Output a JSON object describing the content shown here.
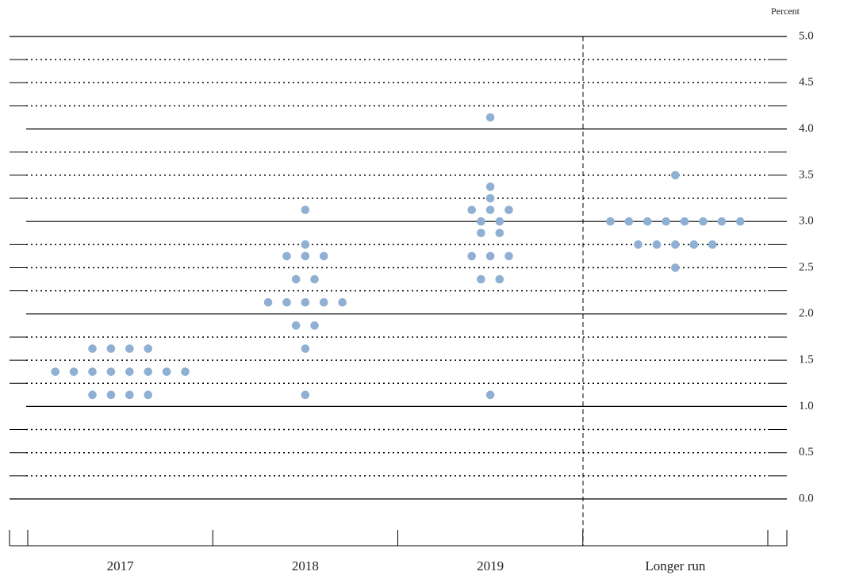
{
  "chart_data": {
    "type": "dot",
    "y_unit_label": "Percent",
    "categories": [
      "2017",
      "2018",
      "2019",
      "Longer run"
    ],
    "values": [
      [
        1.625,
        1.625,
        1.625,
        1.625,
        1.375,
        1.375,
        1.375,
        1.375,
        1.375,
        1.375,
        1.375,
        1.375,
        1.125,
        1.125,
        1.125,
        1.125
      ],
      [
        3.125,
        2.75,
        2.625,
        2.625,
        2.625,
        2.375,
        2.375,
        2.125,
        2.125,
        2.125,
        2.125,
        2.125,
        1.875,
        1.875,
        1.625,
        1.125
      ],
      [
        4.125,
        3.375,
        3.25,
        3.125,
        3.125,
        3.125,
        3,
        3,
        2.875,
        2.875,
        2.625,
        2.625,
        2.625,
        2.375,
        2.375,
        1.125
      ],
      [
        3.5,
        3,
        3,
        3,
        3,
        3,
        3,
        3,
        3,
        2.75,
        2.75,
        2.75,
        2.75,
        2.75,
        2.5
      ]
    ],
    "color": "#8fb0d3",
    "ylim": [
      0,
      5
    ],
    "yticks": [
      {
        "value": 0,
        "label": "0.0"
      },
      {
        "value": 0.5,
        "label": "0.5"
      },
      {
        "value": 1,
        "label": "1.0"
      },
      {
        "value": 1.5,
        "label": "1.5"
      },
      {
        "value": 2,
        "label": "2.0"
      },
      {
        "value": 2.5,
        "label": "2.5"
      },
      {
        "value": 3,
        "label": "3.0"
      },
      {
        "value": 3.5,
        "label": "3.5"
      },
      {
        "value": 4,
        "label": "4.0"
      },
      {
        "value": 4.5,
        "label": "4.5"
      },
      {
        "value": 5,
        "label": "5.0"
      }
    ],
    "solid_gridlines": [
      0,
      1,
      2,
      3,
      4,
      5
    ],
    "dotted_gridlines": [
      0.25,
      0.5,
      0.75,
      1.25,
      1.5,
      1.75,
      2.25,
      2.5,
      2.75,
      3.25,
      3.5,
      3.75,
      4.25,
      4.5,
      4.75
    ]
  }
}
